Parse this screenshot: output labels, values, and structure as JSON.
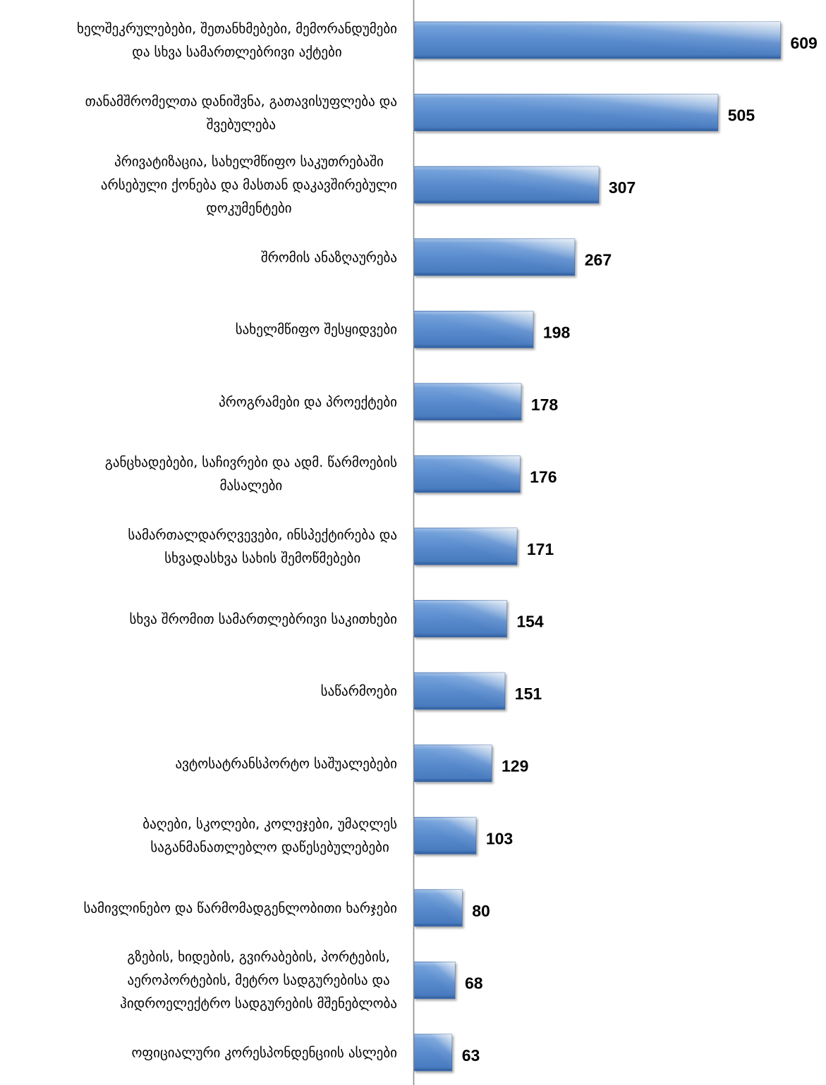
{
  "chart_data": {
    "type": "bar",
    "orientation": "horizontal",
    "categories": [
      "ხელშეკრულებები, შეთანხმებები, მემორანდუმები\nდა სხვა სამართლებრივი აქტები",
      "თანამშრომელთა დანიშვნა, გათავისუფლება და\nშვებულება",
      "პრივატიზაცია, სახელმწიფო საკუთრებაში\nარსებული ქონება და მასთან დაკავშირებული\nდოკუმენტები",
      "შრომის ანაზღაურება",
      "სახელმწიფო შესყიდვები",
      "პროგრამები და პროექტები",
      "განცხადებები, საჩივრები და ადმ. წარმოების\nმასალები",
      "სამართალდარღვევები, ინსპექტირება და\nსხვადასხვა სახის შემოწმებები",
      "სხვა შრომით სამართლებრივი საკითხები",
      "საწარმოები",
      "ავტოსატრანსპორტო საშუალებები",
      "ბაღები, სკოლები, კოლეჯები, უმაღლეს\nსაგანმანათლებლო დაწესებულებები",
      "სამივლინებო და წარმომადგენლობითი ხარჯები",
      "გზების, ხიდების, გვირაბების, პორტების,\nაეროპორტების, მეტრო სადგურებისა და\nჰიდროელექტრო სადგურების მშენებლობა",
      "ოფიციალური კორესპონდენციის ასლები"
    ],
    "values": [
      609,
      505,
      307,
      267,
      198,
      178,
      176,
      171,
      154,
      151,
      129,
      103,
      80,
      68,
      63
    ],
    "xlim": [
      0,
      680
    ],
    "grid": false,
    "legend": "none",
    "data_labels": "outside-end",
    "colors": {
      "bar": "#5789cc",
      "axis": "#8c8c8c",
      "text": "#000000"
    }
  }
}
